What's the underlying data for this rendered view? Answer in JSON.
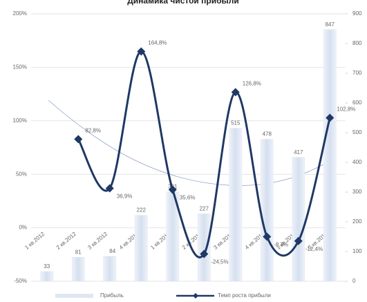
{
  "chart_data": {
    "type": "bar-line",
    "title": "Динамика чистой прибыли",
    "categories": [
      "1 кв.2012",
      "2 кв.2012",
      "3 кв.2012",
      "4 кв.2012",
      "1 кв.2013",
      "2 кв.2013",
      "3 кв.2013",
      "4 кв.2013",
      "1 кв.2014",
      "2 кв.2014"
    ],
    "series": [
      {
        "name": "Прибыль",
        "color": "#dfe7f3",
        "axis": "y2",
        "values": [
          33,
          81,
          84,
          222,
          301,
          227,
          515,
          478,
          417,
          847
        ]
      },
      {
        "name": "Темп роста прибыли",
        "color": "#1f3864",
        "axis": "y",
        "values": [
          null,
          82.8,
          36.9,
          164.8,
          35.6,
          -24.5,
          126.8,
          -8.3,
          -12.4,
          102.8
        ],
        "value_labels": [
          null,
          "82,8%",
          "36,9%",
          "164,8%",
          "35,6%",
          "-24,5%",
          "126,8%",
          "-8,3%",
          "-12,4%",
          "102,8%"
        ]
      }
    ],
    "ylim": [
      -50,
      200
    ],
    "yticks": [
      {
        "value": -50,
        "label": "-50%"
      },
      {
        "value": 0,
        "label": "0%"
      },
      {
        "value": 50,
        "label": "50%"
      },
      {
        "value": 100,
        "label": "100%"
      },
      {
        "value": 150,
        "label": "150%"
      },
      {
        "value": 200,
        "label": "200%"
      }
    ],
    "y2lim": [
      0,
      900
    ],
    "y2ticks": [
      0,
      100,
      200,
      300,
      400,
      500,
      600,
      700,
      800,
      900
    ],
    "grid": true
  }
}
